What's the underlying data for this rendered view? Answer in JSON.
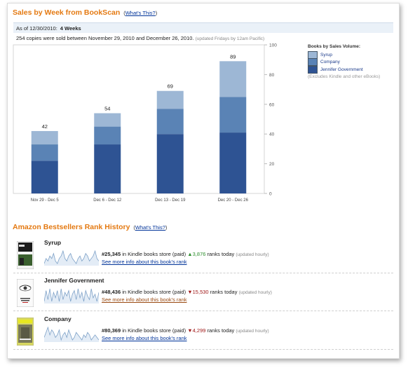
{
  "sales": {
    "title": "Sales by Week from BookScan",
    "help_open": "(",
    "help_link": "What's This?",
    "help_close": ")",
    "asof_label": "As of 12/30/2010:",
    "asof_value": "4 Weeks",
    "sold_text": "254 copies were sold between November 29, 2010 and December 26, 2010.",
    "sold_note": "(updated Fridays by 12am Pacific)"
  },
  "chart_data": {
    "type": "bar",
    "stacked": true,
    "categories": [
      "Nov 29 - Dec 5",
      "Dec 6 - Dec 12",
      "Dec 13 - Dec 19",
      "Dec 20 - Dec 26"
    ],
    "series": [
      {
        "name": "Jennifer Government",
        "values": [
          22,
          33,
          40,
          41
        ],
        "color": "#2e5393"
      },
      {
        "name": "Company",
        "values": [
          11,
          12,
          17,
          24
        ],
        "color": "#5a83b5"
      },
      {
        "name": "Syrup",
        "values": [
          9,
          9,
          12,
          24
        ],
        "color": "#9db7d5"
      }
    ],
    "totals": [
      42,
      54,
      69,
      89
    ],
    "ylim": [
      0,
      100
    ],
    "yticks": [
      0,
      20,
      40,
      60,
      80,
      100
    ],
    "grid": false,
    "legend_title": "Books by Sales Volume:",
    "legend_order": [
      "Syrup",
      "Company",
      "Jennifer Government"
    ],
    "legend_note": "(Excludes Kindle and other eBooks)",
    "legend_position": "right"
  },
  "ranks": {
    "title": "Amazon Bestsellers Rank History",
    "help_open": "(",
    "help_link": "What's This?",
    "help_close": ")",
    "items": [
      {
        "title": "Syrup",
        "rank": "#25,345",
        "store": "in Kindle books store (paid)",
        "arrow": "▲",
        "change": "3,876",
        "direction": "up",
        "change_suffix": "ranks today",
        "updated": "(updated hourly)",
        "more": "See more info about this book's rank",
        "link_color": "#003399",
        "spark": [
          4,
          6,
          5,
          7,
          6,
          8,
          5,
          4,
          6,
          7,
          9,
          6,
          5,
          7,
          8,
          6,
          5,
          4,
          6,
          7,
          5,
          6,
          8,
          7,
          5,
          6,
          7,
          9,
          6,
          5
        ]
      },
      {
        "title": "Jennifer Government",
        "rank": "#48,436",
        "store": "in Kindle books store (paid)",
        "arrow": "▼",
        "change": "15,530",
        "direction": "down",
        "change_suffix": "ranks today",
        "updated": "(updated hourly)",
        "more": "See more info about this book's rank",
        "link_color": "#9a4a12",
        "spark": [
          3,
          9,
          4,
          10,
          3,
          8,
          5,
          9,
          3,
          10,
          4,
          8,
          6,
          9,
          3,
          7,
          9,
          4,
          10,
          5,
          8,
          3,
          9,
          6,
          4,
          10,
          5,
          7,
          3,
          8
        ]
      },
      {
        "title": "Company",
        "rank": "#80,369",
        "store": "in Kindle books store (paid)",
        "arrow": "▼",
        "change": "4,299",
        "direction": "down",
        "change_suffix": "ranks today",
        "updated": "(updated hourly)",
        "more": "See more info about this book's rank",
        "link_color": "#003399",
        "spark": [
          5,
          7,
          9,
          6,
          8,
          7,
          5,
          6,
          8,
          4,
          6,
          7,
          5,
          8,
          6,
          4,
          5,
          7,
          6,
          5,
          4,
          6,
          5,
          7,
          6,
          4,
          5,
          6,
          5,
          4
        ]
      }
    ]
  },
  "colors": {
    "accent": "#e47911",
    "link": "#003399",
    "up": "#2f8f2f",
    "down": "#a01818"
  }
}
